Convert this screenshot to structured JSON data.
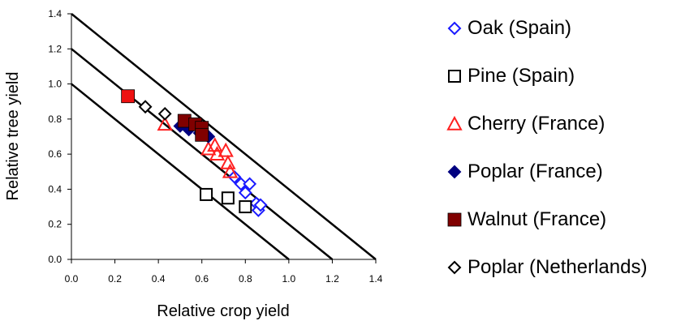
{
  "chart_data": {
    "type": "scatter",
    "title": "",
    "xlabel": "Relative crop yield",
    "ylabel": "Relative tree yield",
    "xlim": [
      0,
      1.4
    ],
    "ylim": [
      0,
      1.4
    ],
    "xticks": [
      "0.0",
      "0.2",
      "0.4",
      "0.6",
      "0.8",
      "1.0",
      "1.2",
      "1.4"
    ],
    "yticks": [
      "0.0",
      "0.2",
      "0.4",
      "0.6",
      "0.8",
      "1.0",
      "1.2",
      "1.4"
    ],
    "grid": false,
    "legend_position": "right",
    "reference_lines": [
      {
        "x1": 0,
        "y1": 1.0,
        "x2": 1.0,
        "y2": 0
      },
      {
        "x1": 0,
        "y1": 1.2,
        "x2": 1.2,
        "y2": 0
      },
      {
        "x1": 0,
        "y1": 1.4,
        "x2": 1.4,
        "y2": 0
      }
    ],
    "series": [
      {
        "name": "Oak (Spain)",
        "marker": "diamond-open",
        "color": "#1a1aff",
        "points": [
          [
            0.75,
            0.47
          ],
          [
            0.78,
            0.43
          ],
          [
            0.8,
            0.38
          ],
          [
            0.82,
            0.43
          ],
          [
            0.85,
            0.32
          ],
          [
            0.86,
            0.28
          ],
          [
            0.87,
            0.31
          ]
        ]
      },
      {
        "name": "Pine (Spain)",
        "marker": "square-open",
        "color": "#000000",
        "points": [
          [
            0.62,
            0.37
          ],
          [
            0.72,
            0.35
          ],
          [
            0.8,
            0.3
          ]
        ]
      },
      {
        "name": "Cherry (France)",
        "marker": "triangle-open",
        "color": "#ff2020",
        "points": [
          [
            0.43,
            0.77
          ],
          [
            0.63,
            0.63
          ],
          [
            0.66,
            0.65
          ],
          [
            0.67,
            0.6
          ],
          [
            0.71,
            0.62
          ],
          [
            0.72,
            0.55
          ],
          [
            0.73,
            0.5
          ]
        ]
      },
      {
        "name": "Poplar (France)",
        "marker": "diamond-filled",
        "color": "#000080",
        "points": [
          [
            0.5,
            0.76
          ],
          [
            0.54,
            0.74
          ],
          [
            0.56,
            0.77
          ],
          [
            0.59,
            0.72
          ],
          [
            0.63,
            0.7
          ]
        ]
      },
      {
        "name": "Walnut (France)",
        "marker": "square-filled",
        "color": "#800000",
        "points": [
          [
            0.52,
            0.79
          ],
          [
            0.57,
            0.77
          ],
          [
            0.6,
            0.75
          ],
          [
            0.6,
            0.71
          ]
        ]
      },
      {
        "name": "Poplar (Netherlands)",
        "marker": "diamond-open",
        "color": "#000000",
        "points": [
          [
            0.34,
            0.87
          ],
          [
            0.43,
            0.83
          ]
        ]
      },
      {
        "name": "",
        "marker": "square-filled-red",
        "color": "#ee1111",
        "points": [
          [
            0.26,
            0.93
          ]
        ]
      }
    ]
  }
}
